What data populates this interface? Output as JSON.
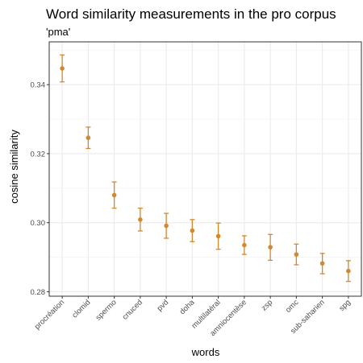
{
  "chart_data": {
    "type": "scatter",
    "title": "Word similarity measurements in the pro corpus",
    "subtitle": "'pma'",
    "xlabel": "words",
    "ylabel": "cosine similarity",
    "ylim": [
      0.2787,
      0.3524
    ],
    "y_ticks": [
      0.28,
      0.3,
      0.32,
      0.34
    ],
    "y_tick_labels": [
      "0.28",
      "0.30",
      "0.32",
      "0.34"
    ],
    "grid": true,
    "theme": "bw",
    "point_color": "#d4882e",
    "categories": [
      "procréation",
      "clomid",
      "spermo",
      "cnuced",
      "pvd",
      "doha",
      "multilatéral",
      "amniocentèse",
      "zsp",
      "omc",
      "sub-saharien",
      "spg"
    ],
    "series": [
      {
        "values": [
          0.3447,
          0.3246,
          0.308,
          0.3009,
          0.2991,
          0.2977,
          0.2961,
          0.2935,
          0.2929,
          0.2908,
          0.2882,
          0.286
        ],
        "lower": [
          0.3408,
          0.3215,
          0.3042,
          0.2976,
          0.2955,
          0.2945,
          0.2923,
          0.2908,
          0.2891,
          0.2878,
          0.2852,
          0.283
        ],
        "upper": [
          0.3486,
          0.3277,
          0.3118,
          0.3042,
          0.3027,
          0.3009,
          0.2999,
          0.2962,
          0.2966,
          0.2938,
          0.2911,
          0.289
        ]
      }
    ]
  }
}
